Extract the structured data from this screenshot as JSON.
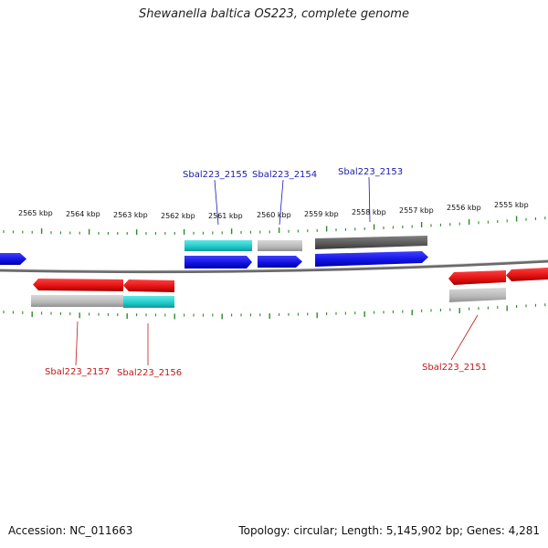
{
  "title": "Shewanella baltica OS223, complete genome",
  "footer": {
    "accession": "Accession: NC_011663",
    "stats": "Topology: circular; Length: 5,145,902 bp; Genes: 4,281"
  },
  "scale_labels": [
    "2565 kbp",
    "2564 kbp",
    "2563 kbp",
    "2562 kbp",
    "2561 kbp",
    "2560 kbp",
    "2559 kbp",
    "2558 kbp",
    "2557 kbp",
    "2556 kbp",
    "2555 kbp"
  ],
  "gene_labels": {
    "forward": [
      "Sbal223_2155",
      "Sbal223_2154",
      "Sbal223_2153"
    ],
    "reverse": [
      "Sbal223_2157",
      "Sbal223_2156",
      "Sbal223_2151"
    ]
  },
  "colors": {
    "forward_gene": "#1010e0",
    "reverse_gene": "#e01010",
    "cyan_feature": "#20c8c8",
    "grey_feature": "#b8b8b8",
    "dark_feature": "#585858",
    "backbone": "#707070",
    "tick": "#2a8a2a",
    "forward_label": "#1a1ab0",
    "reverse_label": "#c01818"
  }
}
